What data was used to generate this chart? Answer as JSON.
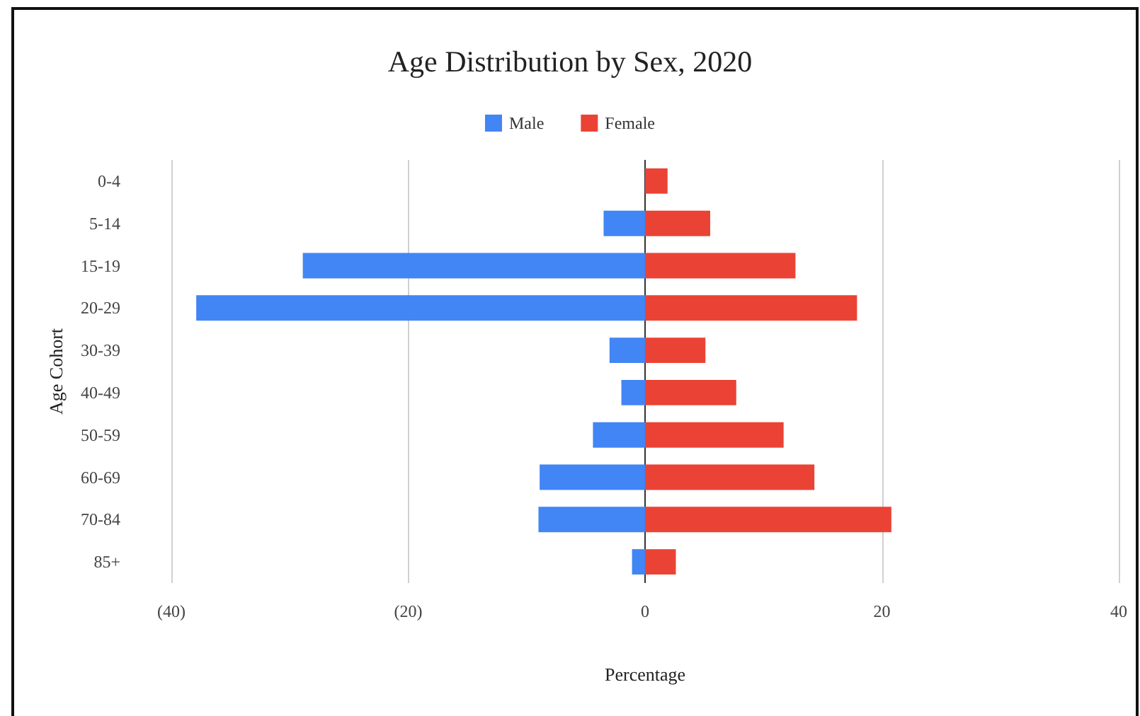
{
  "chart_data": {
    "type": "bar",
    "orientation": "horizontal",
    "stacked": true,
    "title": "Age Distribution by Sex, 2020",
    "xlabel": "Percentage",
    "ylabel": "Age Cohort",
    "categories": [
      "0-4",
      "5-14",
      "15-19",
      "20-29",
      "30-39",
      "40-49",
      "50-59",
      "60-69",
      "70-84",
      "85+"
    ],
    "series": [
      {
        "name": "Male",
        "color": "#4285f4",
        "values": [
          0,
          -3.5,
          -28.9,
          -37.9,
          -3.0,
          -2.0,
          -4.4,
          -8.9,
          -9.0,
          -1.1
        ]
      },
      {
        "name": "Female",
        "color": "#ea4335",
        "values": [
          1.9,
          5.5,
          12.7,
          17.9,
          5.1,
          7.7,
          11.7,
          14.3,
          20.8,
          2.6
        ]
      }
    ],
    "xlim": [
      -40,
      40
    ],
    "xticks": [
      {
        "value": -40,
        "label": "(40)"
      },
      {
        "value": -20,
        "label": "(20)"
      },
      0,
      20,
      40
    ],
    "grid": "x",
    "legend": "top"
  }
}
